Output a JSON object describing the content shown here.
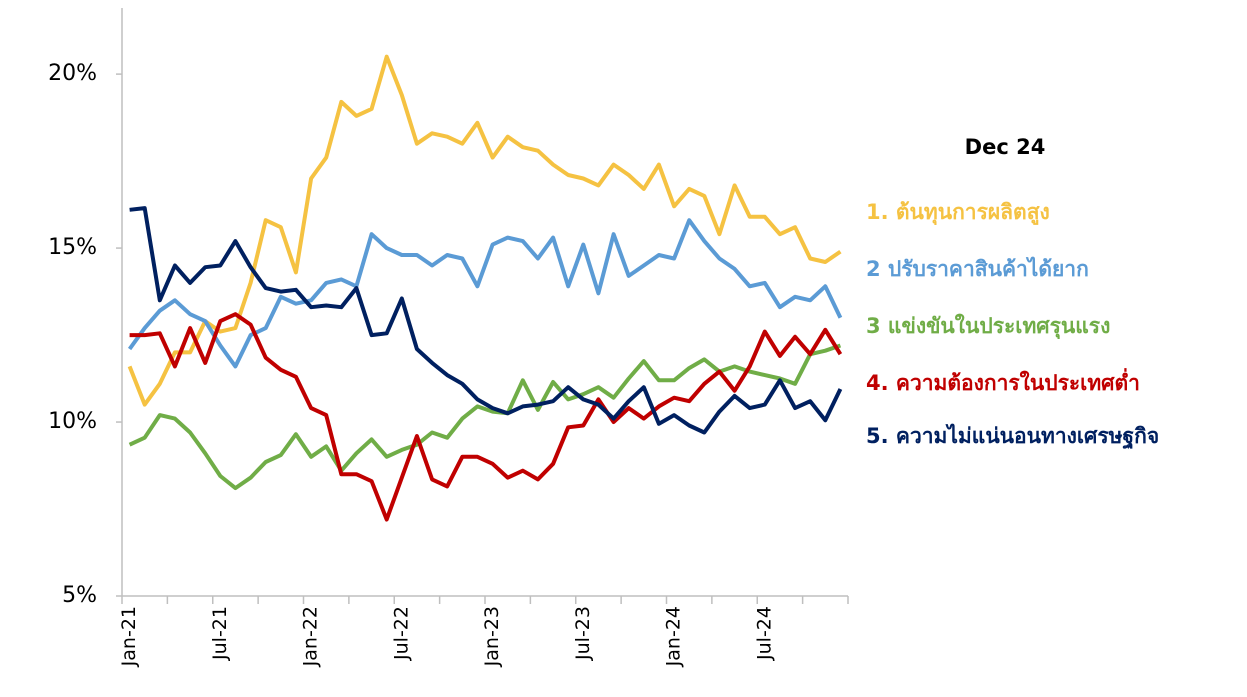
{
  "chart_data": {
    "type": "line",
    "legend_title": "Dec 24",
    "categories": [
      "Jan-21",
      null,
      null,
      null,
      null,
      null,
      "Jul-21",
      null,
      null,
      null,
      null,
      null,
      "Jan-22",
      null,
      null,
      null,
      null,
      null,
      "Jul-22",
      null,
      null,
      null,
      null,
      null,
      "Jan-23",
      null,
      null,
      null,
      null,
      null,
      "Jul-23",
      null,
      null,
      null,
      null,
      null,
      "Jan-24",
      null,
      null,
      null,
      null,
      null,
      "Jul-24",
      null,
      null,
      null,
      null,
      null
    ],
    "series": [
      {
        "name": "1. ต้นทุนการผลิตสูง",
        "color": "#f5c242",
        "values": [
          11.6,
          10.5,
          11.1,
          12.0,
          12.0,
          12.9,
          12.6,
          12.7,
          14.0,
          15.8,
          15.6,
          14.3,
          17.0,
          17.6,
          19.2,
          18.8,
          19.0,
          20.5,
          19.4,
          18.0,
          18.3,
          18.2,
          18.0,
          18.6,
          17.6,
          18.2,
          17.9,
          17.8,
          17.4,
          17.1,
          17.0,
          16.8,
          17.4,
          17.1,
          16.7,
          17.4,
          16.2,
          16.7,
          16.5,
          15.4,
          16.8,
          15.9,
          15.9,
          15.4,
          15.6,
          14.7,
          14.6,
          14.9
        ]
      },
      {
        "name": "2 ปรับราคาสินค้าได้ยาก",
        "color": "#5b9bd5",
        "values": [
          12.1,
          12.7,
          13.2,
          13.5,
          13.1,
          12.9,
          12.2,
          11.6,
          12.5,
          12.7,
          13.6,
          13.4,
          13.5,
          14.0,
          14.1,
          13.9,
          15.4,
          15.0,
          14.8,
          14.8,
          14.5,
          14.8,
          14.7,
          13.9,
          15.1,
          15.3,
          15.2,
          14.7,
          15.3,
          13.9,
          15.1,
          13.7,
          15.4,
          14.2,
          14.5,
          14.8,
          14.7,
          15.8,
          15.2,
          14.7,
          14.4,
          13.9,
          14.0,
          13.3,
          13.6,
          13.5,
          13.9,
          13.0
        ]
      },
      {
        "name": "3 แข่งขันในประเทศรุนแรง",
        "color": "#70ad47",
        "values": [
          9.35,
          9.55,
          10.2,
          10.1,
          9.7,
          9.1,
          8.45,
          8.1,
          8.4,
          8.85,
          9.05,
          9.65,
          9.0,
          9.3,
          8.6,
          9.1,
          9.5,
          9.0,
          9.2,
          9.35,
          9.7,
          9.55,
          10.1,
          10.45,
          10.3,
          10.25,
          11.2,
          10.35,
          11.15,
          10.65,
          10.8,
          11.0,
          10.7,
          11.25,
          11.75,
          11.2,
          11.2,
          11.55,
          11.8,
          11.45,
          11.6,
          11.45,
          11.35,
          11.25,
          11.1,
          11.95,
          12.05,
          12.2
        ]
      },
      {
        "name": "4. ความต้องการในประเทศต่ำ",
        "color": "#c00000",
        "values": [
          12.5,
          12.5,
          12.55,
          11.6,
          12.7,
          11.7,
          12.9,
          13.1,
          12.8,
          11.85,
          11.5,
          11.3,
          10.4,
          10.2,
          8.5,
          8.5,
          8.3,
          7.2,
          8.4,
          9.6,
          8.35,
          8.15,
          9.0,
          9.0,
          8.8,
          8.4,
          8.6,
          8.35,
          8.8,
          9.85,
          9.9,
          10.65,
          10.0,
          10.4,
          10.1,
          10.45,
          10.7,
          10.6,
          11.1,
          11.45,
          10.9,
          11.6,
          12.6,
          11.9,
          12.45,
          11.95,
          12.65,
          11.95
        ]
      },
      {
        "name": "5. ความไม่แน่นอนทางเศรษฐกิจ",
        "color": "#002060",
        "values": [
          16.1,
          16.15,
          13.5,
          14.5,
          14.0,
          14.45,
          14.5,
          15.2,
          14.45,
          13.85,
          13.75,
          13.8,
          13.3,
          13.35,
          13.3,
          13.85,
          12.5,
          12.55,
          13.55,
          12.1,
          11.7,
          11.35,
          11.1,
          10.65,
          10.4,
          10.25,
          10.45,
          10.5,
          10.6,
          11.0,
          10.65,
          10.5,
          10.1,
          10.6,
          11.0,
          9.95,
          10.2,
          9.9,
          9.7,
          10.3,
          10.75,
          10.4,
          10.5,
          11.2,
          10.4,
          10.6,
          10.05,
          10.95
        ]
      }
    ],
    "ylim": [
      5,
      21.9
    ],
    "yticks": [
      {
        "value": 5,
        "label": "5%"
      },
      {
        "value": 10,
        "label": "10%"
      },
      {
        "value": 15,
        "label": "15%"
      },
      {
        "value": 20,
        "label": "20%"
      }
    ]
  }
}
